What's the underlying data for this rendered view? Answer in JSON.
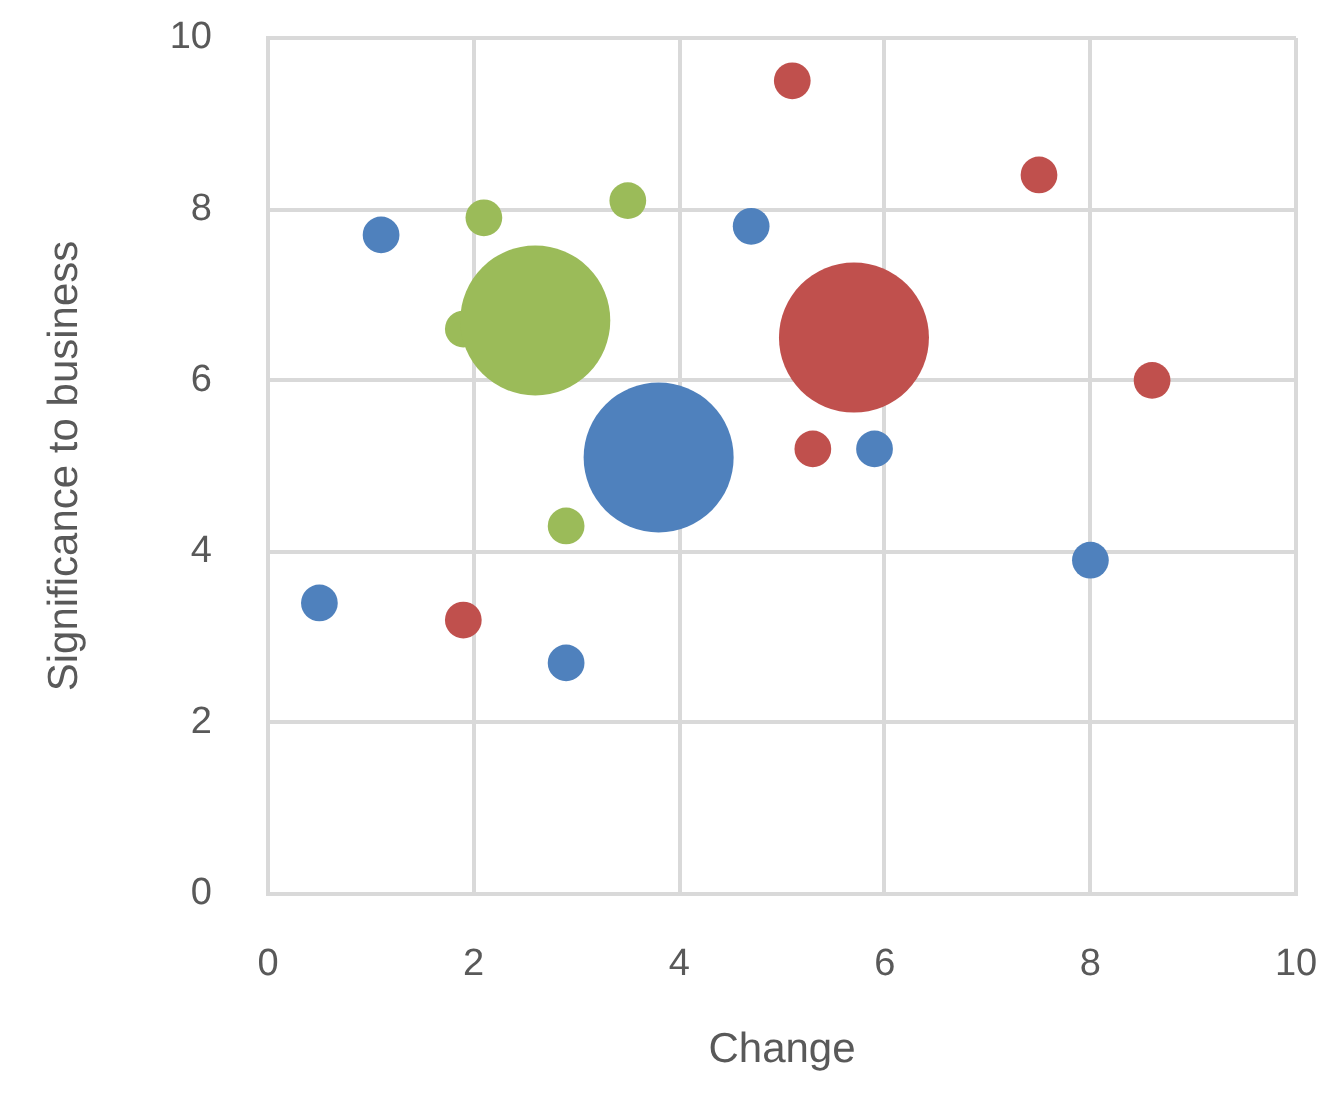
{
  "chart_data": {
    "type": "bubble",
    "xlabel": "Change",
    "ylabel": "Significance to business",
    "xlim": [
      0,
      10
    ],
    "ylim": [
      0,
      10
    ],
    "xticks": [
      0,
      2,
      4,
      6,
      8,
      10
    ],
    "yticks": [
      0,
      2,
      4,
      6,
      8,
      10
    ],
    "grid": true,
    "legend": false,
    "series": [
      {
        "color": "#4f81bd",
        "x": [
          1.1,
          4.7,
          5.9,
          0.5,
          2.9,
          8.0,
          3.8
        ],
        "values": [
          7.7,
          7.8,
          5.2,
          3.4,
          2.7,
          3.9,
          5.1
        ],
        "sizes": [
          0.06,
          0.06,
          0.06,
          0.06,
          0.06,
          0.06,
          1
        ]
      },
      {
        "color": "#c0504d",
        "x": [
          5.1,
          7.5,
          8.6,
          5.3,
          1.9,
          5.7
        ],
        "values": [
          9.5,
          8.4,
          6.0,
          5.2,
          3.2,
          6.5
        ],
        "sizes": [
          0.06,
          0.06,
          0.06,
          0.06,
          0.06,
          1
        ]
      },
      {
        "color": "#9bbb59",
        "x": [
          2.1,
          3.5,
          2.9,
          1.9,
          2.6
        ],
        "values": [
          7.9,
          8.1,
          4.3,
          6.6,
          6.7
        ],
        "sizes": [
          0.06,
          0.06,
          0.06,
          0.06,
          1
        ]
      }
    ]
  }
}
